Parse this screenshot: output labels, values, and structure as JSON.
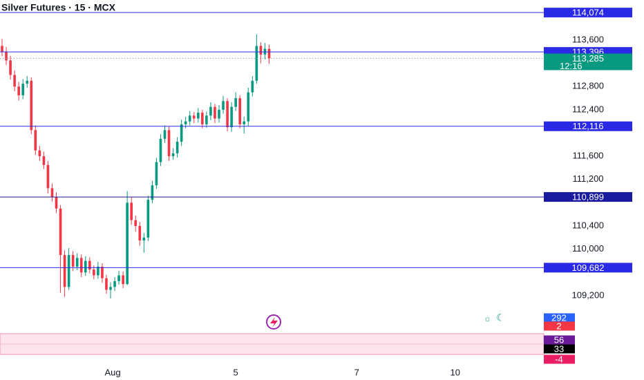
{
  "chart_data": {
    "type": "candlestick",
    "title": "Silver Futures · 15 · MCX",
    "up_color": "#089981",
    "down_color": "#f23645",
    "x": [
      0,
      1,
      2,
      3,
      4,
      5,
      6,
      7,
      8,
      9,
      10,
      11,
      12,
      13,
      14,
      15,
      16,
      17,
      18,
      19,
      20,
      21,
      22,
      23,
      24,
      25,
      26,
      27,
      28,
      29,
      30,
      31,
      32,
      33,
      34,
      35,
      36,
      37,
      38,
      39,
      40,
      41,
      42,
      43,
      44,
      45,
      46,
      47,
      48,
      49,
      50,
      51,
      52,
      53,
      54,
      55,
      56,
      57,
      58,
      59,
      60,
      61,
      62,
      63,
      64
    ],
    "open": [
      113500,
      113400,
      113250,
      113000,
      112800,
      112650,
      112850,
      112900,
      112050,
      111700,
      111600,
      111450,
      111050,
      110900,
      110700,
      109900,
      109350,
      109900,
      109700,
      109850,
      109600,
      109800,
      109650,
      109550,
      109700,
      109500,
      109300,
      109350,
      109450,
      109550,
      109400,
      110800,
      110500,
      110400,
      110150,
      110200,
      110850,
      111100,
      111500,
      111900,
      112050,
      111600,
      111650,
      111850,
      112150,
      112200,
      112300,
      112250,
      112350,
      112150,
      112300,
      112450,
      112250,
      112400,
      112550,
      112100,
      112450,
      112600,
      112150,
      112200,
      112700,
      112900,
      113500,
      113350,
      113450
    ],
    "high": [
      113620,
      113480,
      113330,
      113080,
      112880,
      112930,
      112980,
      112960,
      112130,
      111780,
      111680,
      111520,
      111130,
      110980,
      110760,
      109980,
      110020,
      109970,
      109930,
      109910,
      109880,
      109860,
      109720,
      109780,
      109760,
      109560,
      109430,
      109520,
      109630,
      109620,
      111000,
      110900,
      110580,
      110470,
      110280,
      110920,
      111180,
      111570,
      111980,
      112130,
      112110,
      111740,
      111930,
      112230,
      112280,
      112380,
      112360,
      112430,
      112400,
      112370,
      112530,
      112500,
      112480,
      112640,
      112600,
      112530,
      112700,
      112650,
      112280,
      112780,
      112980,
      113700,
      113560,
      113550,
      113520
    ],
    "low": [
      113320,
      113170,
      112920,
      112720,
      112560,
      112580,
      112780,
      111980,
      111620,
      111520,
      111380,
      110960,
      110820,
      110620,
      109250,
      109180,
      109300,
      109620,
      109640,
      109520,
      109540,
      109580,
      109480,
      109490,
      109420,
      109230,
      109150,
      109280,
      109390,
      109330,
      109380,
      110420,
      110300,
      110060,
      109940,
      110140,
      110790,
      111040,
      111430,
      111830,
      111520,
      111540,
      111580,
      111780,
      112080,
      112130,
      112170,
      112180,
      112080,
      112090,
      112220,
      112170,
      112180,
      112330,
      112030,
      112020,
      112380,
      112080,
      111990,
      112120,
      112630,
      112850,
      113200,
      113270,
      113190
    ],
    "close": [
      113400,
      113250,
      113000,
      112800,
      112650,
      112850,
      112900,
      112050,
      111700,
      111600,
      111450,
      111050,
      110900,
      110700,
      109900,
      109350,
      109900,
      109700,
      109850,
      109600,
      109800,
      109650,
      109550,
      109700,
      109500,
      109300,
      109350,
      109450,
      109550,
      109400,
      110800,
      110500,
      110400,
      110150,
      110200,
      110850,
      111100,
      111500,
      111900,
      112050,
      111600,
      111650,
      111850,
      112150,
      112200,
      112300,
      112250,
      112350,
      112150,
      112300,
      112450,
      112250,
      112400,
      112550,
      112100,
      112450,
      112600,
      112150,
      112200,
      112700,
      112900,
      113500,
      113350,
      113450,
      113285
    ],
    "xlim": [
      0,
      130
    ],
    "xticks": [
      {
        "value": 26.5,
        "label": "Aug"
      },
      {
        "value": 56,
        "label": "5"
      },
      {
        "value": 85,
        "label": "7"
      },
      {
        "value": 108.6,
        "label": "10"
      }
    ],
    "ylim": [
      108640,
      114290
    ],
    "yticks": [
      {
        "value": 109200,
        "label": "109,200"
      },
      {
        "value": 110000,
        "label": "110,000"
      },
      {
        "value": 110400,
        "label": "110,400"
      },
      {
        "value": 111200,
        "label": "111,200"
      },
      {
        "value": 111600,
        "label": "111,600"
      },
      {
        "value": 112400,
        "label": "112,400"
      },
      {
        "value": 112800,
        "label": "112,800"
      },
      {
        "value": 113600,
        "label": "113,600"
      }
    ],
    "levels": [
      {
        "value": 114074,
        "label": "114,074",
        "color": "#2a2ae6"
      },
      {
        "value": 113396,
        "label": "113,396",
        "color": "#2a2ae6"
      },
      {
        "value": 112116,
        "label": "112,116",
        "color": "#2a2ae6"
      },
      {
        "value": 110899,
        "label": "110,899",
        "color": "#1a1a9e"
      },
      {
        "value": 109682,
        "label": "109,682",
        "color": "#2a2ae6"
      }
    ],
    "last_price": {
      "value": 113285,
      "label": "113,285",
      "countdown": "12:16",
      "color": "#089981"
    },
    "volume_labels": [
      {
        "label": "292",
        "color": "#2962ff"
      },
      {
        "label": "2",
        "color": "#f23645"
      }
    ],
    "oscillator_labels": [
      {
        "label": "56",
        "color": "#6a1b9a"
      },
      {
        "label": "33",
        "color": "#000000"
      },
      {
        "label": "-4",
        "color": "#e91e63"
      }
    ]
  }
}
